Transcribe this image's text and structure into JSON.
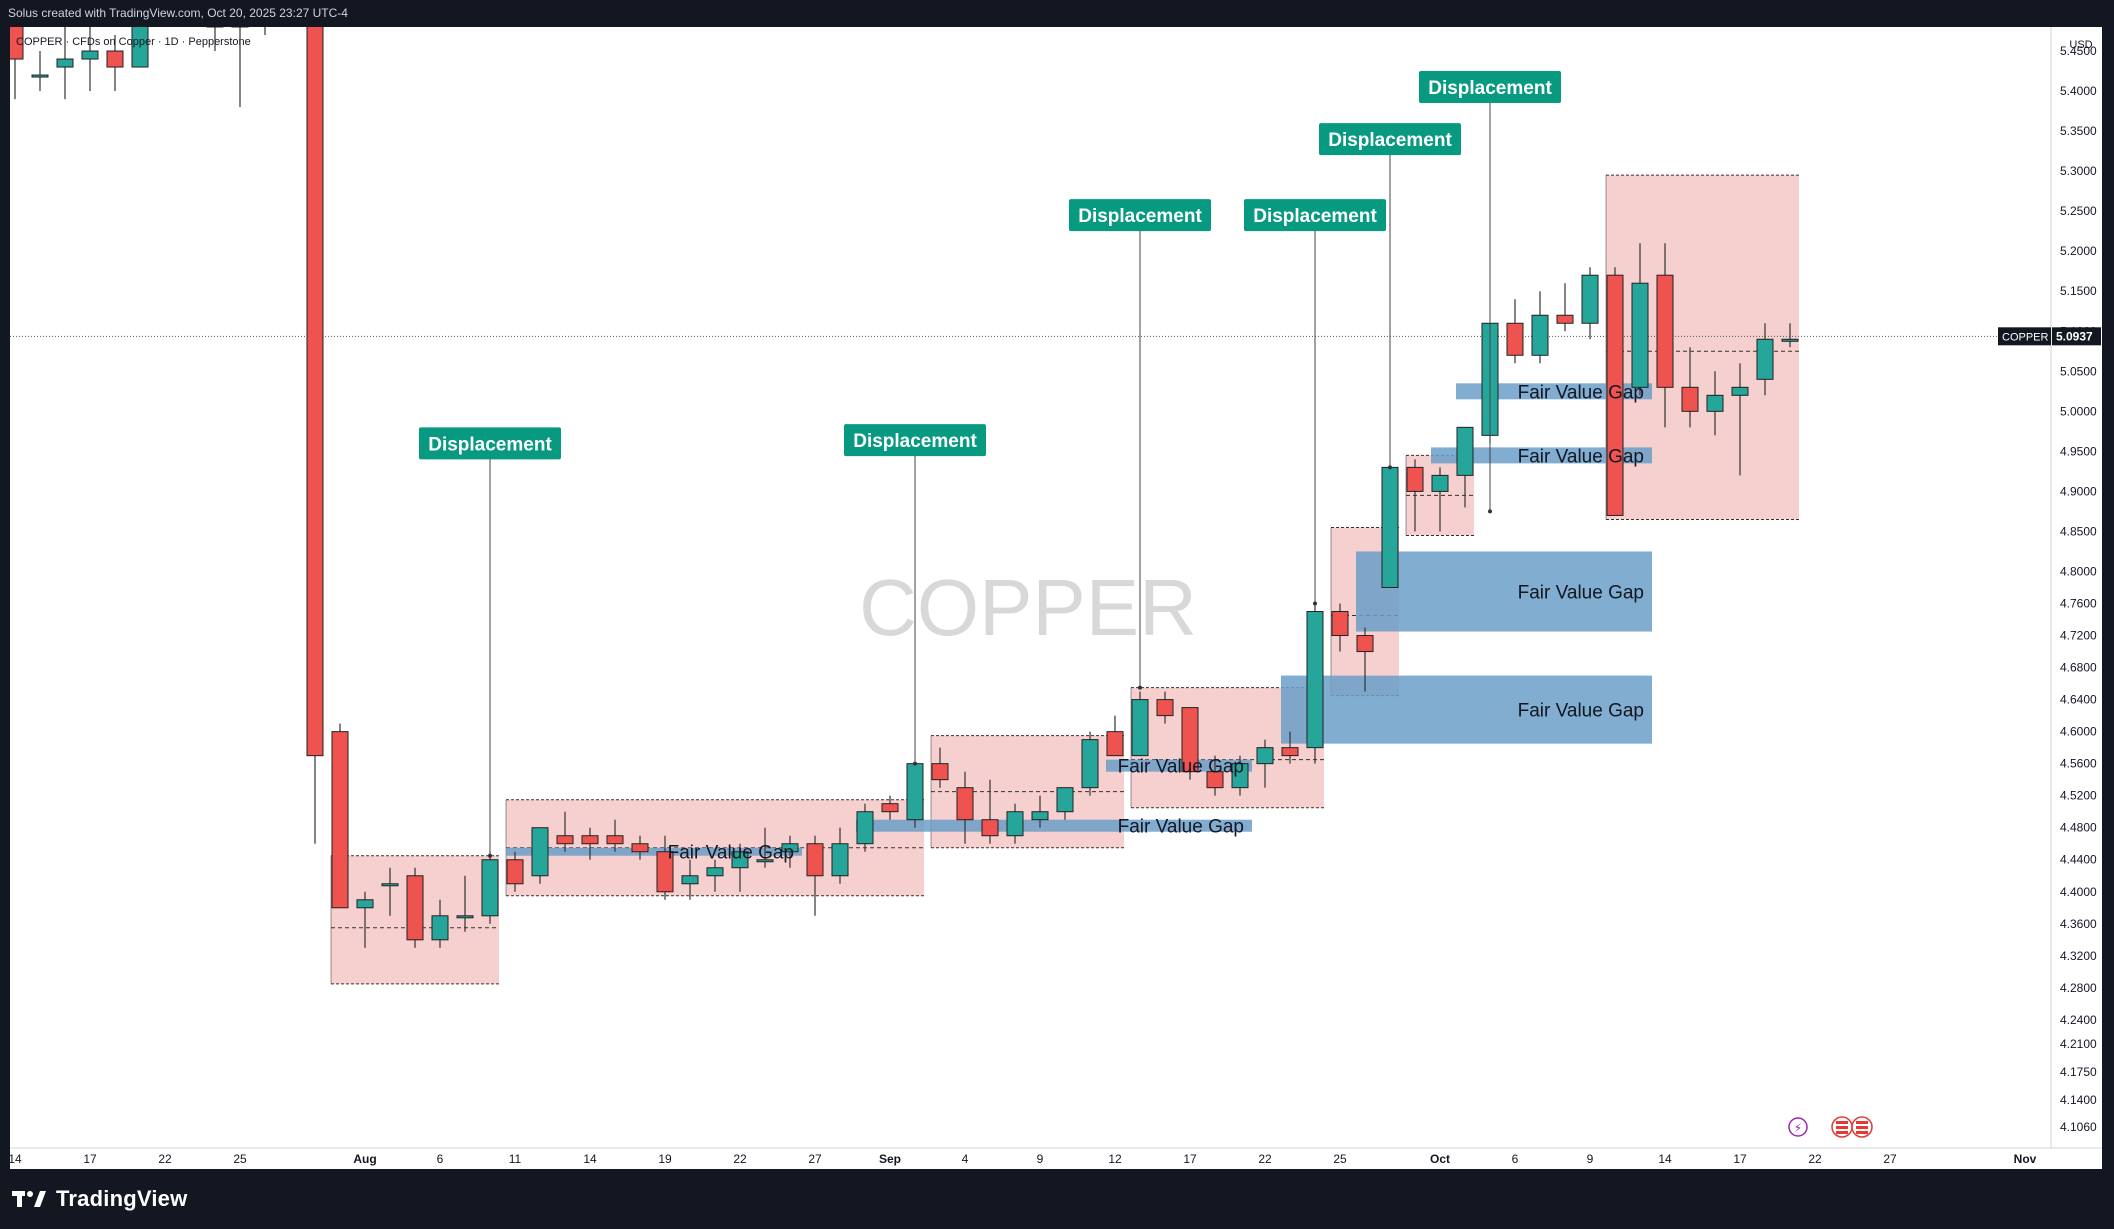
{
  "header": {
    "created_by": "Solus created with TradingView.com, Oct 20, 2025 23:27 UTC-4"
  },
  "chart_data": {
    "type": "candlestick",
    "symbol_line": "COPPER · CFDs on Copper · 1D · Pepperstone",
    "watermark": "COPPER",
    "currency": "USD",
    "ylim": [
      4.08,
      5.48
    ],
    "price_ticks": [
      "5.4500",
      "5.4000",
      "5.3500",
      "5.3000",
      "5.2500",
      "5.2000",
      "5.1500",
      "5.1000",
      "5.0500",
      "5.0000",
      "4.9500",
      "4.9000",
      "4.8500",
      "4.8000",
      "4.7600",
      "4.7200",
      "4.6800",
      "4.6400",
      "4.6000",
      "4.5600",
      "4.5200",
      "4.4800",
      "4.4400",
      "4.4000",
      "4.3600",
      "4.3200",
      "4.2800",
      "4.2400",
      "4.2100",
      "4.1750",
      "4.1400",
      "4.1060"
    ],
    "time_ticks": [
      "14",
      "17",
      "22",
      "25",
      "Aug",
      "6",
      "11",
      "14",
      "19",
      "22",
      "27",
      "Sep",
      "4",
      "9",
      "12",
      "17",
      "22",
      "25",
      "Oct",
      "6",
      "9",
      "14",
      "17",
      "22",
      "27",
      "Nov"
    ],
    "last_price": {
      "symbol": "COPPER",
      "value": "5.0937",
      "price": 5.0937
    },
    "candles": [
      {
        "date": "2025-07-14",
        "o": 5.55,
        "h": 5.56,
        "l": 5.39,
        "c": 5.44
      },
      {
        "date": "2025-07-15",
        "o": 5.42,
        "h": 5.45,
        "l": 5.4,
        "c": 5.42
      },
      {
        "date": "2025-07-16",
        "o": 5.43,
        "h": 5.55,
        "l": 5.39,
        "c": 5.44
      },
      {
        "date": "2025-07-17",
        "o": 5.44,
        "h": 5.5,
        "l": 5.4,
        "c": 5.45
      },
      {
        "date": "2025-07-18",
        "o": 5.45,
        "h": 5.47,
        "l": 5.4,
        "c": 5.43
      },
      {
        "date": "2025-07-21",
        "o": 5.43,
        "h": 5.56,
        "l": 5.43,
        "c": 5.53
      },
      {
        "date": "2025-07-22",
        "o": 5.53,
        "h": 5.55,
        "l": 5.49,
        "c": 5.52
      },
      {
        "date": "2025-07-23",
        "o": 5.52,
        "h": 5.54,
        "l": 5.48,
        "c": 5.5
      },
      {
        "date": "2025-07-24",
        "o": 5.5,
        "h": 5.53,
        "l": 5.45,
        "c": 5.48
      },
      {
        "date": "2025-07-25",
        "o": 5.48,
        "h": 5.52,
        "l": 5.38,
        "c": 5.5
      },
      {
        "date": "2025-07-28",
        "o": 5.5,
        "h": 5.53,
        "l": 5.47,
        "c": 5.52
      },
      {
        "date": "2025-07-29",
        "o": 5.52,
        "h": 5.54,
        "l": 5.48,
        "c": 5.5
      },
      {
        "date": "2025-07-30",
        "o": 5.58,
        "h": 5.6,
        "l": 4.46,
        "c": 4.57
      },
      {
        "date": "2025-07-31",
        "o": 4.6,
        "h": 4.61,
        "l": 4.39,
        "c": 4.38
      },
      {
        "date": "2025-08-01",
        "o": 4.38,
        "h": 4.4,
        "l": 4.33,
        "c": 4.39
      },
      {
        "date": "2025-08-04",
        "o": 4.41,
        "h": 4.43,
        "l": 4.37,
        "c": 4.41
      },
      {
        "date": "2025-08-05",
        "o": 4.42,
        "h": 4.43,
        "l": 4.33,
        "c": 4.34
      },
      {
        "date": "2025-08-06",
        "o": 4.34,
        "h": 4.39,
        "l": 4.33,
        "c": 4.37
      },
      {
        "date": "2025-08-07",
        "o": 4.37,
        "h": 4.42,
        "l": 4.35,
        "c": 4.37
      },
      {
        "date": "2025-08-08",
        "o": 4.37,
        "h": 4.45,
        "l": 4.36,
        "c": 4.44
      },
      {
        "date": "2025-08-11",
        "o": 4.44,
        "h": 4.45,
        "l": 4.4,
        "c": 4.41
      },
      {
        "date": "2025-08-12",
        "o": 4.42,
        "h": 4.48,
        "l": 4.41,
        "c": 4.48
      },
      {
        "date": "2025-08-13",
        "o": 4.47,
        "h": 4.5,
        "l": 4.45,
        "c": 4.46
      },
      {
        "date": "2025-08-14",
        "o": 4.47,
        "h": 4.48,
        "l": 4.44,
        "c": 4.46
      },
      {
        "date": "2025-08-15",
        "o": 4.47,
        "h": 4.49,
        "l": 4.45,
        "c": 4.46
      },
      {
        "date": "2025-08-18",
        "o": 4.46,
        "h": 4.47,
        "l": 4.44,
        "c": 4.45
      },
      {
        "date": "2025-08-19",
        "o": 4.45,
        "h": 4.47,
        "l": 4.39,
        "c": 4.4
      },
      {
        "date": "2025-08-20",
        "o": 4.41,
        "h": 4.44,
        "l": 4.39,
        "c": 4.42
      },
      {
        "date": "2025-08-21",
        "o": 4.42,
        "h": 4.44,
        "l": 4.4,
        "c": 4.43
      },
      {
        "date": "2025-08-22",
        "o": 4.43,
        "h": 4.46,
        "l": 4.4,
        "c": 4.45
      },
      {
        "date": "2025-08-25",
        "o": 4.44,
        "h": 4.48,
        "l": 4.43,
        "c": 4.44
      },
      {
        "date": "2025-08-26",
        "o": 4.45,
        "h": 4.47,
        "l": 4.43,
        "c": 4.46
      },
      {
        "date": "2025-08-27",
        "o": 4.46,
        "h": 4.47,
        "l": 4.37,
        "c": 4.42
      },
      {
        "date": "2025-08-28",
        "o": 4.42,
        "h": 4.48,
        "l": 4.41,
        "c": 4.46
      },
      {
        "date": "2025-08-29",
        "o": 4.46,
        "h": 4.51,
        "l": 4.45,
        "c": 4.5
      },
      {
        "date": "2025-09-01",
        "o": 4.51,
        "h": 4.52,
        "l": 4.49,
        "c": 4.5
      },
      {
        "date": "2025-09-02",
        "o": 4.49,
        "h": 4.56,
        "l": 4.48,
        "c": 4.56
      },
      {
        "date": "2025-09-03",
        "o": 4.56,
        "h": 4.58,
        "l": 4.53,
        "c": 4.54
      },
      {
        "date": "2025-09-04",
        "o": 4.53,
        "h": 4.55,
        "l": 4.46,
        "c": 4.49
      },
      {
        "date": "2025-09-05",
        "o": 4.49,
        "h": 4.54,
        "l": 4.46,
        "c": 4.47
      },
      {
        "date": "2025-09-08",
        "o": 4.47,
        "h": 4.51,
        "l": 4.46,
        "c": 4.5
      },
      {
        "date": "2025-09-09",
        "o": 4.49,
        "h": 4.52,
        "l": 4.48,
        "c": 4.5
      },
      {
        "date": "2025-09-10",
        "o": 4.5,
        "h": 4.53,
        "l": 4.49,
        "c": 4.53
      },
      {
        "date": "2025-09-11",
        "o": 4.53,
        "h": 4.6,
        "l": 4.52,
        "c": 4.59
      },
      {
        "date": "2025-09-12",
        "o": 4.6,
        "h": 4.62,
        "l": 4.57,
        "c": 4.57
      },
      {
        "date": "2025-09-15",
        "o": 4.57,
        "h": 4.65,
        "l": 4.57,
        "c": 4.64
      },
      {
        "date": "2025-09-16",
        "o": 4.64,
        "h": 4.65,
        "l": 4.61,
        "c": 4.62
      },
      {
        "date": "2025-09-17",
        "o": 4.63,
        "h": 4.63,
        "l": 4.54,
        "c": 4.55
      },
      {
        "date": "2025-09-18",
        "o": 4.55,
        "h": 4.57,
        "l": 4.52,
        "c": 4.53
      },
      {
        "date": "2025-09-19",
        "o": 4.53,
        "h": 4.57,
        "l": 4.52,
        "c": 4.56
      },
      {
        "date": "2025-09-22",
        "o": 4.56,
        "h": 4.59,
        "l": 4.53,
        "c": 4.58
      },
      {
        "date": "2025-09-23",
        "o": 4.58,
        "h": 4.6,
        "l": 4.56,
        "c": 4.57
      },
      {
        "date": "2025-09-24",
        "o": 4.58,
        "h": 4.76,
        "l": 4.56,
        "c": 4.75
      },
      {
        "date": "2025-09-25",
        "o": 4.75,
        "h": 4.76,
        "l": 4.7,
        "c": 4.72
      },
      {
        "date": "2025-09-26",
        "o": 4.72,
        "h": 4.73,
        "l": 4.65,
        "c": 4.7
      },
      {
        "date": "2025-09-29",
        "o": 4.78,
        "h": 4.93,
        "l": 4.78,
        "c": 4.93
      },
      {
        "date": "2025-09-30",
        "o": 4.93,
        "h": 4.94,
        "l": 4.85,
        "c": 4.9
      },
      {
        "date": "2025-10-01",
        "o": 4.9,
        "h": 4.93,
        "l": 4.85,
        "c": 4.92
      },
      {
        "date": "2025-10-02",
        "o": 4.92,
        "h": 4.98,
        "l": 4.88,
        "c": 4.98
      },
      {
        "date": "2025-10-03",
        "o": 4.97,
        "h": 5.11,
        "l": 4.96,
        "c": 5.11
      },
      {
        "date": "2025-10-06",
        "o": 5.11,
        "h": 5.14,
        "l": 5.06,
        "c": 5.07
      },
      {
        "date": "2025-10-07",
        "o": 5.07,
        "h": 5.15,
        "l": 5.06,
        "c": 5.12
      },
      {
        "date": "2025-10-08",
        "o": 5.12,
        "h": 5.16,
        "l": 5.1,
        "c": 5.11
      },
      {
        "date": "2025-10-09",
        "o": 5.11,
        "h": 5.18,
        "l": 5.09,
        "c": 5.17
      },
      {
        "date": "2025-10-10",
        "o": 5.17,
        "h": 5.18,
        "l": 4.87,
        "c": 4.87
      },
      {
        "date": "2025-10-13",
        "o": 5.03,
        "h": 5.21,
        "l": 5.02,
        "c": 5.16
      },
      {
        "date": "2025-10-14",
        "o": 5.17,
        "h": 5.21,
        "l": 4.98,
        "c": 5.03
      },
      {
        "date": "2025-10-15",
        "o": 5.03,
        "h": 5.08,
        "l": 4.98,
        "c": 5.0
      },
      {
        "date": "2025-10-16",
        "o": 5.0,
        "h": 5.05,
        "l": 4.97,
        "c": 5.02
      },
      {
        "date": "2025-10-17",
        "o": 5.02,
        "h": 5.06,
        "l": 4.92,
        "c": 5.03
      },
      {
        "date": "2025-10-20",
        "o": 5.04,
        "h": 5.11,
        "l": 5.02,
        "c": 5.09
      },
      {
        "date": "2025-10-21",
        "o": 5.09,
        "h": 5.11,
        "l": 5.08,
        "c": 5.09
      }
    ],
    "fair_value_gaps": [
      {
        "label": "Fair Value Gap",
        "from": "2025-08-11",
        "to": "2025-08-26",
        "top": 4.455,
        "bottom": 4.445
      },
      {
        "label": "Fair Value Gap",
        "from": "2025-08-29",
        "to": "2025-09-19",
        "top": 4.49,
        "bottom": 4.475
      },
      {
        "label": "Fair Value Gap",
        "from": "2025-09-12",
        "to": "2025-09-19",
        "top": 4.565,
        "bottom": 4.55
      },
      {
        "label": "Fair Value Gap",
        "from": "2025-09-23",
        "to": "2025-10-13",
        "top": 4.67,
        "bottom": 4.585
      },
      {
        "label": "Fair Value Gap",
        "from": "2025-09-26",
        "to": "2025-10-13",
        "top": 4.825,
        "bottom": 4.725
      },
      {
        "label": "Fair Value Gap",
        "from": "2025-10-01",
        "to": "2025-10-13",
        "top": 4.955,
        "bottom": 4.935
      },
      {
        "label": "Fair Value Gap",
        "from": "2025-10-02",
        "to": "2025-10-13",
        "top": 5.035,
        "bottom": 5.015
      }
    ],
    "ranges": [
      {
        "from": "2025-07-31",
        "to": "2025-08-08",
        "top": 4.445,
        "bottom": 4.285,
        "mid": 4.355
      },
      {
        "from": "2025-08-11",
        "to": "2025-09-02",
        "top": 4.515,
        "bottom": 4.395,
        "mid": 4.455
      },
      {
        "from": "2025-09-03",
        "to": "2025-09-12",
        "top": 4.595,
        "bottom": 4.455,
        "mid": 4.525
      },
      {
        "from": "2025-09-15",
        "to": "2025-09-24",
        "top": 4.655,
        "bottom": 4.505,
        "mid": 4.565
      },
      {
        "from": "2025-09-25",
        "to": "2025-09-29",
        "top": 4.855,
        "bottom": 4.645,
        "mid": 4.745
      },
      {
        "from": "2025-09-30",
        "to": "2025-10-02",
        "top": 4.945,
        "bottom": 4.845,
        "mid": 4.895
      },
      {
        "from": "2025-10-10",
        "to": "2025-10-21",
        "top": 5.295,
        "bottom": 4.865,
        "mid": 5.075
      }
    ],
    "displacements": [
      {
        "label": "Displacement",
        "date": "2025-08-08",
        "label_price": 4.96,
        "anchor_price": 4.445
      },
      {
        "label": "Displacement",
        "date": "2025-09-02",
        "label_price": 4.964,
        "anchor_price": 4.56
      },
      {
        "label": "Displacement",
        "date": "2025-09-15",
        "label_price": 5.245,
        "anchor_price": 4.655
      },
      {
        "label": "Displacement",
        "date": "2025-09-24",
        "label_price": 5.245,
        "anchor_price": 4.76
      },
      {
        "label": "Displacement",
        "date": "2025-09-29",
        "label_price": 5.34,
        "anchor_price": 4.93
      },
      {
        "label": "Displacement",
        "date": "2025-10-03",
        "label_price": 5.405,
        "anchor_price": 4.875
      }
    ]
  },
  "colors": {
    "bull": "#26a69a",
    "bear": "#ef5350",
    "fvg": "#6a9fc8",
    "range": "#f4c7c7",
    "label_bg": "#089981",
    "background": "#ffffff",
    "frame": "#131722"
  },
  "footer": {
    "brand": "TradingView"
  }
}
